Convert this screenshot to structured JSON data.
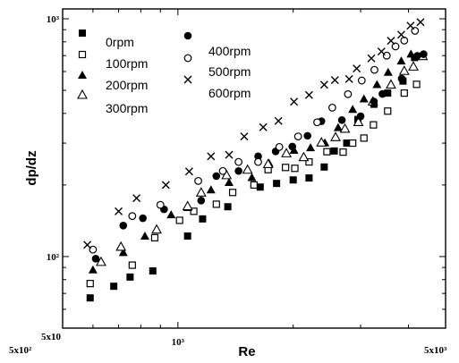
{
  "chart_data": {
    "type": "scatter",
    "title": "",
    "xlabel": "Re",
    "ylabel": "dp/dz",
    "x_scale": "log",
    "y_scale": "log",
    "xlim": [
      500,
      5000
    ],
    "ylim": [
      50,
      1100
    ],
    "grid": false,
    "legend_position": "top-left",
    "x_tick_labels": [
      "5x10²",
      "10³",
      "5x10³"
    ],
    "y_tick_labels": [
      "5x10",
      "10²",
      "10³"
    ],
    "series": [
      {
        "name": "0rpm",
        "marker": "filled-square",
        "x": [
          590,
          680,
          750,
          860,
          1060,
          1160,
          1350,
          1640,
          1810,
          2000,
          2200,
          2410,
          2560,
          2760,
          2950,
          3250,
          3530,
          3870,
          4150
        ],
        "y": [
          67,
          75,
          82,
          87,
          122,
          144,
          162,
          196,
          203,
          210,
          214,
          238,
          278,
          300,
          377,
          437,
          487,
          547,
          687
        ]
      },
      {
        "name": "100rpm",
        "marker": "open-square",
        "x": [
          590,
          760,
          870,
          1010,
          1100,
          1260,
          1390,
          1580,
          1720,
          1910,
          2020,
          2200,
          2450,
          2700,
          2860,
          3060,
          3240,
          3530,
          3900,
          4200
        ],
        "y": [
          77,
          92,
          120,
          142,
          155,
          166,
          186,
          200,
          232,
          237,
          235,
          250,
          276,
          275,
          300,
          315,
          358,
          409,
          487,
          530
        ]
      },
      {
        "name": "200rpm",
        "marker": "filled-triangle",
        "x": [
          600,
          720,
          820,
          960,
          1060,
          1220,
          1360,
          1560,
          1730,
          2010,
          2220,
          2420,
          2620,
          2860,
          3060,
          3310,
          3540,
          3830,
          4060
        ],
        "y": [
          88,
          104,
          122,
          150,
          161,
          191,
          205,
          215,
          247,
          280,
          287,
          301,
          349,
          416,
          461,
          529,
          596,
          665,
          711
        ]
      },
      {
        "name": "300rpm",
        "marker": "open-triangle",
        "x": [
          630,
          710,
          880,
          1060,
          1150,
          1340,
          1520,
          1720,
          1920,
          2130,
          2370,
          2580,
          2730,
          2960,
          3230,
          3600,
          3900,
          4120,
          4360
        ],
        "y": [
          95,
          110,
          130,
          163,
          186,
          220,
          232,
          245,
          272,
          262,
          302,
          318,
          345,
          368,
          449,
          529,
          604,
          630,
          697
        ]
      },
      {
        "name": "400rpm",
        "marker": "filled-circle",
        "x": [
          610,
          720,
          810,
          920,
          1150,
          1260,
          1440,
          1620,
          1800,
          1990,
          2180,
          2370,
          2680,
          3000,
          3250,
          3420,
          3840,
          4220,
          4380
        ],
        "y": [
          98,
          135,
          145,
          158,
          172,
          218,
          229,
          264,
          277,
          290,
          322,
          371,
          375,
          389,
          449,
          483,
          560,
          699,
          710
        ]
      },
      {
        "name": "500rpm",
        "marker": "open-circle",
        "x": [
          600,
          760,
          900,
          1130,
          1310,
          1440,
          1620,
          1840,
          2060,
          2310,
          2530,
          2780,
          3020,
          3260,
          3510,
          3700,
          3900,
          4160
        ],
        "y": [
          107,
          148,
          165,
          208,
          229,
          250,
          250,
          289,
          320,
          367,
          423,
          482,
          550,
          610,
          700,
          765,
          810,
          890
        ]
      },
      {
        "name": "600rpm",
        "marker": "cross",
        "x": [
          580,
          700,
          780,
          930,
          1070,
          1220,
          1360,
          1490,
          1670,
          1830,
          2010,
          2200,
          2410,
          2570,
          2800,
          2930,
          3200,
          3400,
          3600,
          3830,
          4050,
          4300
        ],
        "y": [
          112,
          155,
          176,
          200,
          228,
          264,
          268,
          320,
          350,
          372,
          448,
          478,
          528,
          552,
          558,
          618,
          682,
          728,
          808,
          858,
          935,
          968
        ]
      }
    ]
  }
}
